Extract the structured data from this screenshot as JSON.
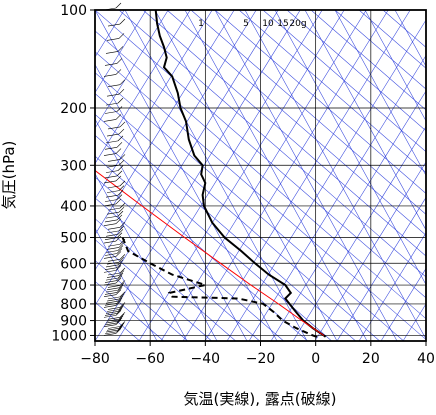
{
  "chart_data": {
    "type": "line",
    "title": "",
    "xlabel": "気温(実線), 露点(破線)",
    "ylabel": "気圧(hPa)",
    "xlim": [
      -80,
      40
    ],
    "ylim": [
      1040,
      100
    ],
    "y_scale": "log",
    "grid": true,
    "x_ticks": [
      "−80",
      "−60",
      "−40",
      "−20",
      "0",
      "20",
      "40"
    ],
    "x_tick_values": [
      -80,
      -60,
      -40,
      -20,
      0,
      20,
      40
    ],
    "y_ticks": [
      "100",
      "200",
      "300",
      "400",
      "500",
      "600",
      "700",
      "800",
      "900",
      "1000"
    ],
    "y_tick_values": [
      100,
      200,
      300,
      400,
      500,
      600,
      700,
      800,
      900,
      1000
    ],
    "mixing_ratio_labels": [
      "1",
      "5",
      "10",
      "15",
      "20g"
    ],
    "mixing_ratio_values": [
      1,
      5,
      10,
      15,
      20
    ],
    "series": [
      {
        "style": "solid",
        "color": "#000000",
        "points": [
          {
            "p": 1010,
            "t": 3.6
          },
          {
            "p": 1000,
            "t": 3.0
          },
          {
            "p": 950,
            "t": -1.0
          },
          {
            "p": 900,
            "t": -4.5
          },
          {
            "p": 850,
            "t": -7.0
          },
          {
            "p": 800,
            "t": -9.5
          },
          {
            "p": 770,
            "t": -11.0
          },
          {
            "p": 740,
            "t": -9.0
          },
          {
            "p": 700,
            "t": -11.0
          },
          {
            "p": 650,
            "t": -17.0
          },
          {
            "p": 600,
            "t": -22.0
          },
          {
            "p": 550,
            "t": -27.0
          },
          {
            "p": 500,
            "t": -33.0
          },
          {
            "p": 450,
            "t": -37.5
          },
          {
            "p": 400,
            "t": -40.5
          },
          {
            "p": 370,
            "t": -41.0
          },
          {
            "p": 340,
            "t": -40.0
          },
          {
            "p": 320,
            "t": -41.5
          },
          {
            "p": 300,
            "t": -41.0
          },
          {
            "p": 280,
            "t": -44.0
          },
          {
            "p": 250,
            "t": -46.0
          },
          {
            "p": 220,
            "t": -47.0
          },
          {
            "p": 200,
            "t": -49.0
          },
          {
            "p": 180,
            "t": -50.0
          },
          {
            "p": 160,
            "t": -52.0
          },
          {
            "p": 150,
            "t": -55.0
          },
          {
            "p": 140,
            "t": -54.0
          },
          {
            "p": 130,
            "t": -55.0
          },
          {
            "p": 120,
            "t": -56.5
          },
          {
            "p": 110,
            "t": -57.5
          },
          {
            "p": 100,
            "t": -58.0
          }
        ]
      },
      {
        "style": "dashed",
        "color": "#000000",
        "points": [
          {
            "p": 1010,
            "t": 0.5
          },
          {
            "p": 1000,
            "t": -1.0
          },
          {
            "p": 950,
            "t": -7.0
          },
          {
            "p": 900,
            "t": -12.0
          },
          {
            "p": 850,
            "t": -15.0
          },
          {
            "p": 800,
            "t": -19.0
          },
          {
            "p": 770,
            "t": -28.0
          },
          {
            "p": 760,
            "t": -52.0
          },
          {
            "p": 740,
            "t": -53.0
          },
          {
            "p": 700,
            "t": -40.0
          },
          {
            "p": 650,
            "t": -52.0
          },
          {
            "p": 600,
            "t": -60.0
          },
          {
            "p": 550,
            "t": -68.0
          },
          {
            "p": 500,
            "t": -70.0
          }
        ]
      },
      {
        "style": "solid",
        "color": "#ff0000",
        "points": [
          {
            "p": 1000,
            "t": 3.0
          },
          {
            "p": 900,
            "t": -5.0
          },
          {
            "p": 800,
            "t": -13.5
          },
          {
            "p": 700,
            "t": -23.5
          },
          {
            "p": 600,
            "t": -34.5
          },
          {
            "p": 500,
            "t": -47.5
          },
          {
            "p": 400,
            "t": -63.0
          },
          {
            "p": 300,
            "t": -82.5
          }
        ]
      }
    ]
  }
}
